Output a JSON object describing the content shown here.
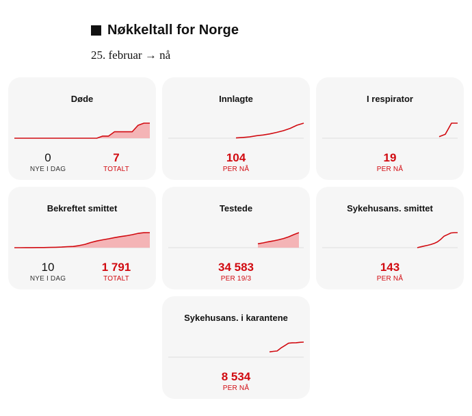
{
  "page": {
    "title": "Nøkkeltall for Norge",
    "subtitle": "25. februar → nå"
  },
  "colors": {
    "accent": "#d10a10",
    "fill": "#f4b4b6",
    "card_bg": "#f6f6f6",
    "baseline": "#dddddd"
  },
  "cards": [
    {
      "title": "Døde",
      "stats": [
        {
          "value": "0",
          "label": "NYE I DAG",
          "style": "black"
        },
        {
          "value": "7",
          "label": "TOTALT",
          "style": "red"
        }
      ]
    },
    {
      "title": "Innlagte",
      "stats": [
        {
          "value": "104",
          "label": "PER NÅ",
          "style": "red"
        }
      ]
    },
    {
      "title": "I respirator",
      "stats": [
        {
          "value": "19",
          "label": "PER NÅ",
          "style": "red"
        }
      ]
    },
    {
      "title": "Bekreftet smittet",
      "stats": [
        {
          "value": "10",
          "label": "NYE I DAG",
          "style": "black"
        },
        {
          "value": "1 791",
          "label": "TOTALT",
          "style": "red"
        }
      ]
    },
    {
      "title": "Testede",
      "stats": [
        {
          "value": "34 583",
          "label": "PER 19/3",
          "style": "red"
        }
      ]
    },
    {
      "title": "Sykehusans. smittet",
      "stats": [
        {
          "value": "143",
          "label": "PER NÅ",
          "style": "red"
        }
      ]
    },
    {
      "title": "Sykehusans. i karantene",
      "stats": [
        {
          "value": "8 534",
          "label": "PER NÅ",
          "style": "red"
        }
      ]
    }
  ],
  "chart_data": [
    {
      "type": "area",
      "title": "Døde",
      "x": [
        0,
        1,
        2,
        3,
        4,
        5,
        6,
        7,
        8,
        9,
        10,
        11,
        12,
        13,
        14,
        15,
        16,
        17,
        18,
        19,
        20,
        21,
        22,
        23
      ],
      "values": [
        0,
        0,
        0,
        0,
        0,
        0,
        0,
        0,
        0,
        0,
        0,
        0,
        0,
        0,
        0,
        1,
        1,
        3,
        3,
        3,
        3,
        6,
        7,
        7
      ],
      "ylim": [
        0,
        7
      ],
      "fill": true
    },
    {
      "type": "line",
      "title": "Innlagte",
      "x": [
        0,
        1,
        2,
        3,
        4,
        5,
        6,
        7,
        8,
        9,
        10
      ],
      "values": [
        2,
        5,
        9,
        17,
        22,
        30,
        40,
        52,
        68,
        90,
        104
      ],
      "ylim": [
        0,
        104
      ],
      "fill": false
    },
    {
      "type": "line",
      "title": "I respirator",
      "x": [
        0,
        1,
        2,
        3
      ],
      "values": [
        2,
        5,
        19,
        19
      ],
      "ylim": [
        0,
        19
      ],
      "fill": false
    },
    {
      "type": "area",
      "title": "Bekreftet smittet",
      "x": [
        0,
        1,
        2,
        3,
        4,
        5,
        6,
        7,
        8,
        9,
        10,
        11,
        12,
        13,
        14,
        15,
        16,
        17,
        18,
        19,
        20,
        21,
        22,
        23
      ],
      "values": [
        1,
        3,
        6,
        10,
        15,
        20,
        30,
        45,
        70,
        120,
        150,
        250,
        400,
        620,
        800,
        940,
        1060,
        1200,
        1320,
        1420,
        1550,
        1700,
        1781,
        1791
      ],
      "ylim": [
        0,
        1791
      ],
      "fill": true
    },
    {
      "type": "area",
      "title": "Testede",
      "x": [
        0,
        1,
        2,
        3,
        4,
        5,
        6,
        7,
        8
      ],
      "values": [
        9000,
        11000,
        13500,
        15500,
        18000,
        21000,
        25000,
        30000,
        34583
      ],
      "ylim": [
        0,
        34583
      ],
      "fill": true
    },
    {
      "type": "line",
      "title": "Sykehusans. smittet",
      "x": [
        0,
        1,
        2,
        3,
        4,
        5,
        6,
        7,
        8,
        9,
        10,
        11,
        12
      ],
      "values": [
        0,
        8,
        15,
        22,
        30,
        40,
        55,
        80,
        110,
        125,
        140,
        143,
        143
      ],
      "ylim": [
        0,
        143
      ],
      "fill": false
    },
    {
      "type": "line",
      "title": "Sykehusans. i karantene",
      "x": [
        0,
        1,
        2,
        3,
        4,
        5,
        6,
        7,
        8,
        9
      ],
      "values": [
        3000,
        3300,
        3500,
        5200,
        6500,
        7900,
        8100,
        8200,
        8400,
        8534
      ],
      "ylim": [
        0,
        8534
      ],
      "fill": false
    }
  ]
}
